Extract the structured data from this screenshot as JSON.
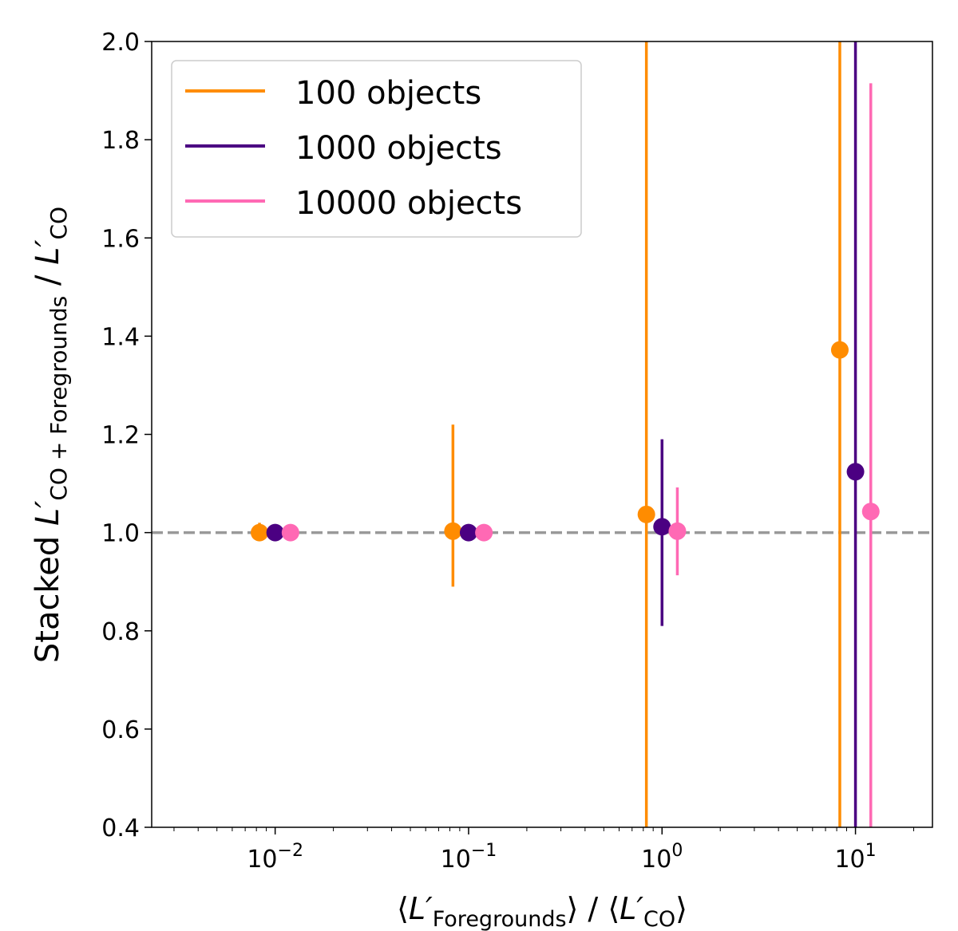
{
  "chart_data": {
    "type": "scatter",
    "xscale": "log",
    "xlim": [
      0.0023,
      25
    ],
    "ylim": [
      0.4,
      2.0
    ],
    "grid": false,
    "legend_position": "top-left",
    "reference_line": {
      "y": 1.0,
      "style": "dashed",
      "color": "#999999"
    },
    "xlabel": {
      "left_bracket": "⟨",
      "symbol": "L′",
      "sub1": "Foregrounds",
      "mid": "⟩ / ⟨",
      "sub2": "CO",
      "right_bracket": "⟩"
    },
    "ylabel": {
      "prefix": "Stacked ",
      "symbol1": "L′",
      "sub1": "CO + Foregrounds",
      "mid": " / ",
      "symbol2": "L′",
      "sub2": "CO"
    },
    "yticks": [
      {
        "value": 0.4,
        "label": "0.4"
      },
      {
        "value": 0.6,
        "label": "0.6"
      },
      {
        "value": 0.8,
        "label": "0.8"
      },
      {
        "value": 1.0,
        "label": "1.0"
      },
      {
        "value": 1.2,
        "label": "1.2"
      },
      {
        "value": 1.4,
        "label": "1.4"
      },
      {
        "value": 1.6,
        "label": "1.6"
      },
      {
        "value": 1.8,
        "label": "1.8"
      },
      {
        "value": 2.0,
        "label": "2.0"
      }
    ],
    "xticks": [
      {
        "value": 0.01,
        "base": "10",
        "exp": "−2"
      },
      {
        "value": 0.1,
        "base": "10",
        "exp": "−1"
      },
      {
        "value": 1,
        "base": "10",
        "exp": "0"
      },
      {
        "value": 10,
        "base": "10",
        "exp": "1"
      }
    ],
    "series": [
      {
        "name": "100 objects",
        "color": "#ff8c00",
        "points": [
          {
            "x": 0.0083,
            "y": 1.0,
            "ylow": 0.995,
            "yhigh": 1.02
          },
          {
            "x": 0.083,
            "y": 1.003,
            "ylow": 0.89,
            "yhigh": 1.22
          },
          {
            "x": 0.83,
            "y": 1.037,
            "ylow": 0.4,
            "yhigh": 2.0
          },
          {
            "x": 8.3,
            "y": 1.372,
            "ylow": 0.4,
            "yhigh": 2.0
          }
        ]
      },
      {
        "name": "1000 objects",
        "color": "#4b0082",
        "points": [
          {
            "x": 0.01,
            "y": 1.0,
            "ylow": 0.998,
            "yhigh": 1.002
          },
          {
            "x": 0.1,
            "y": 1.0,
            "ylow": 0.985,
            "yhigh": 1.015
          },
          {
            "x": 1.0,
            "y": 1.012,
            "ylow": 0.81,
            "yhigh": 1.19
          },
          {
            "x": 10,
            "y": 1.124,
            "ylow": 0.4,
            "yhigh": 2.0
          }
        ]
      },
      {
        "name": "10000 objects",
        "color": "#ff69b4",
        "points": [
          {
            "x": 0.012,
            "y": 1.0,
            "ylow": 0.999,
            "yhigh": 1.001
          },
          {
            "x": 0.12,
            "y": 1.0,
            "ylow": 0.997,
            "yhigh": 1.003
          },
          {
            "x": 1.2,
            "y": 1.003,
            "ylow": 0.913,
            "yhigh": 1.092
          },
          {
            "x": 12,
            "y": 1.043,
            "ylow": 0.4,
            "yhigh": 1.915
          }
        ]
      }
    ]
  }
}
